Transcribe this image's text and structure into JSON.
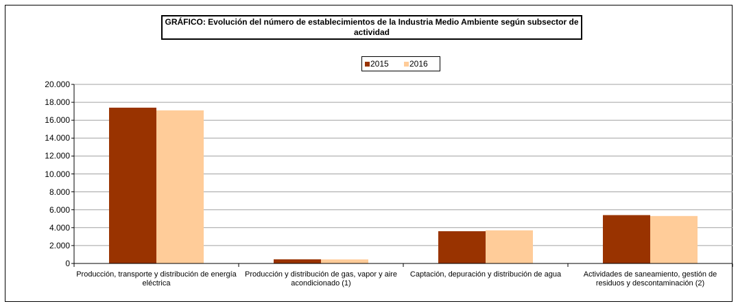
{
  "chart_data": {
    "type": "bar",
    "title": "GRÁFICO: Evolución del número de establecimientos de la Industria Medio Ambiente según subsector de actividad",
    "categories": [
      "Producción, transporte y distribución de energía eléctrica",
      "Producción y distribución de gas, vapor y aire acondicionado (1)",
      "Captación, depuración y distribución de agua",
      "Actividades de saneamiento, gestión de residuos y descontaminación (2)"
    ],
    "series": [
      {
        "name": "2015",
        "color": "#993300",
        "values": [
          17400,
          460,
          3600,
          5400
        ]
      },
      {
        "name": "2016",
        "color": "#ffcc99",
        "values": [
          17100,
          450,
          3700,
          5300
        ]
      }
    ],
    "ylim": [
      0,
      20000
    ],
    "yticks": [
      0,
      {
        "value": 2000,
        "label": "2.000"
      },
      {
        "value": 4000,
        "label": "4.000"
      },
      {
        "value": 6000,
        "label": "6.000"
      },
      {
        "value": 8000,
        "label": "8.000"
      },
      {
        "value": 10000,
        "label": "10.000"
      },
      {
        "value": 12000,
        "label": "12.000"
      },
      {
        "value": 14000,
        "label": "14.000"
      },
      {
        "value": 16000,
        "label": "16.000"
      },
      {
        "value": 18000,
        "label": "18.000"
      },
      {
        "value": 20000,
        "label": "20.000"
      }
    ],
    "grid": true,
    "legend": "top"
  }
}
